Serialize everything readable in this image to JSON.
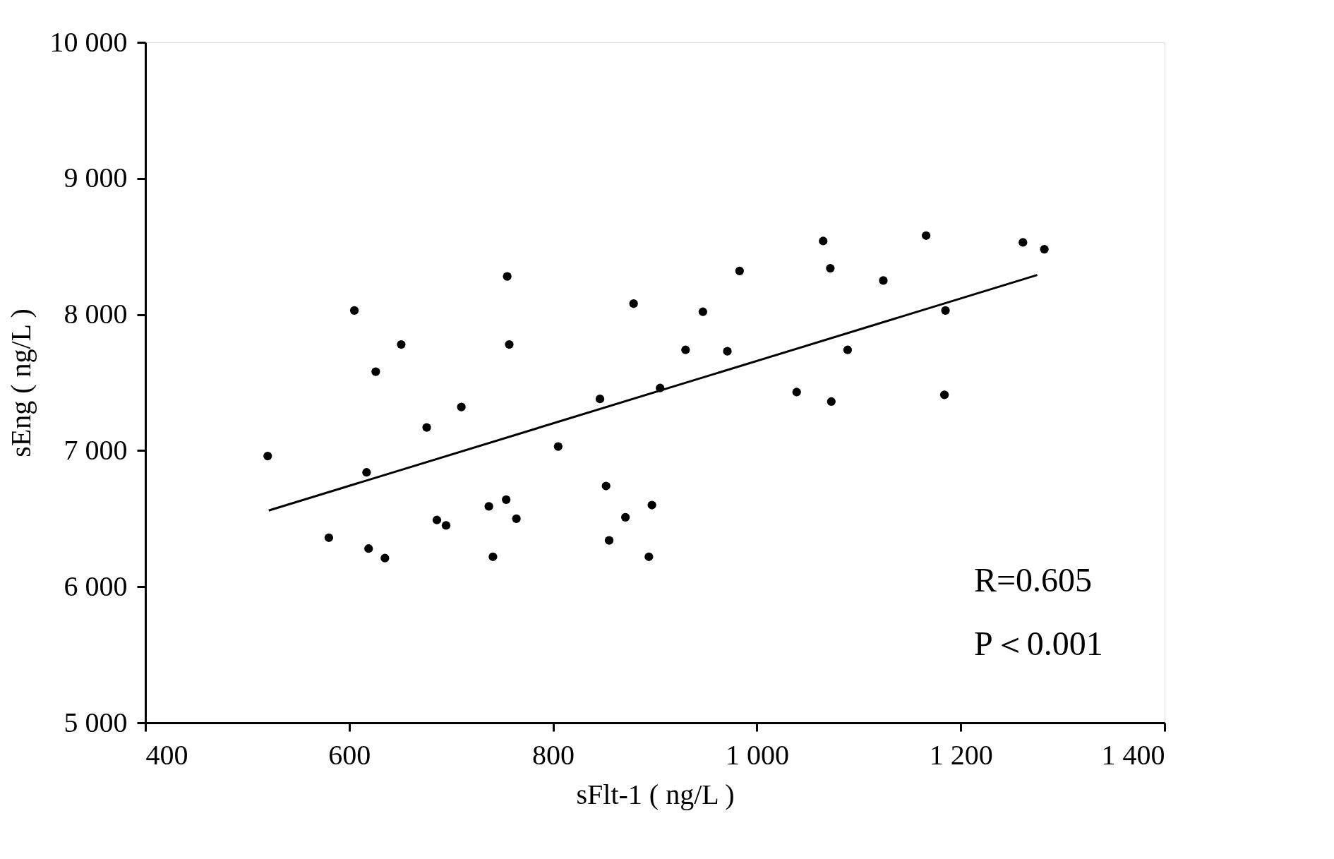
{
  "chart_data": {
    "type": "scatter",
    "xlabel": "sFlt-1 ( ng/L )",
    "ylabel": "sEng ( ng/L )",
    "xlim": [
      400,
      1400
    ],
    "ylim": [
      5000,
      10000
    ],
    "xticks": [
      400,
      600,
      800,
      {
        "value": 1000,
        "label": "1 000"
      },
      {
        "value": 1200,
        "label": "1 200"
      },
      {
        "value": 1400,
        "label": "1 400"
      }
    ],
    "yticks": [
      {
        "value": 5000,
        "label": "5 000"
      },
      {
        "value": 6000,
        "label": "6 000"
      },
      {
        "value": 7000,
        "label": "7 000"
      },
      {
        "value": 8000,
        "label": "8 000"
      },
      {
        "value": 9000,
        "label": "9 000"
      },
      {
        "value": 10000,
        "label": "10 000"
      }
    ],
    "grid": false,
    "series": [
      {
        "color": "#000000",
        "marker": "circle",
        "x": [
          520,
          580,
          605,
          617,
          619,
          626,
          635,
          651,
          676,
          686,
          695,
          710,
          737,
          741,
          754,
          755,
          757,
          764,
          805,
          846,
          852,
          855,
          871,
          879,
          894,
          897,
          905,
          930,
          947,
          971,
          983,
          1039,
          1065,
          1072,
          1073,
          1089,
          1124,
          1166,
          1184,
          1185,
          1261,
          1282
        ],
        "values": [
          6960,
          6360,
          8030,
          6840,
          6280,
          7580,
          6210,
          7780,
          7170,
          6490,
          6450,
          7320,
          6590,
          6220,
          6640,
          8280,
          7780,
          6500,
          7030,
          7380,
          6740,
          6340,
          6510,
          8080,
          6220,
          6600,
          7460,
          7740,
          8020,
          7730,
          8320,
          7430,
          8540,
          8340,
          7360,
          7740,
          8250,
          8580,
          7410,
          8030,
          8530,
          8480
        ]
      },
      {
        "type": "line",
        "color": "#000000",
        "marker": "none",
        "line_style": "solid",
        "x": [
          521,
          1275
        ],
        "values": [
          6560,
          8290
        ]
      }
    ],
    "annotations": [
      "R=0.605",
      "P＜0.001"
    ]
  }
}
